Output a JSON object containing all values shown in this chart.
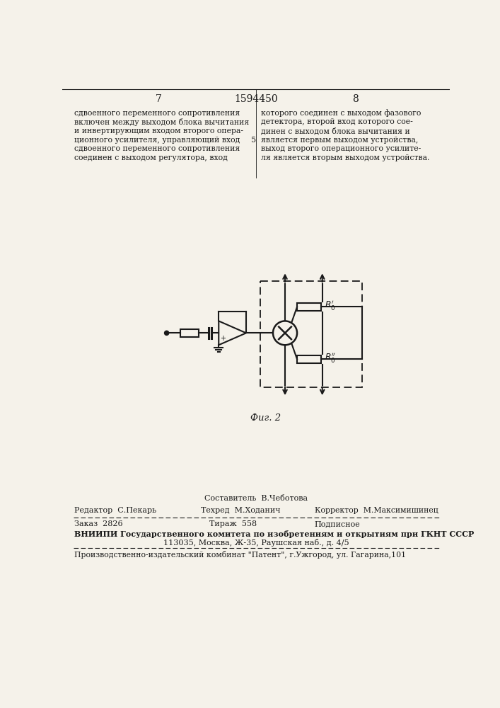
{
  "page_num_left": "7",
  "page_num_center": "1594450",
  "page_num_right": "8",
  "col_line_num": "5",
  "left_text": [
    "сдвоенного переменного сопротивления",
    "включен между выходом блока вычитания",
    "и инвертирующим входом второго опера-",
    "ционного усилителя, управляющий вход",
    "сдвоенного переменного сопротивления",
    "соединен с выходом регулятора, вход"
  ],
  "right_text": [
    "которого соединен с выходом фазового",
    "детектора, второй вход которого сое-",
    "динен с выходом блока вычитания и",
    "является первым выходом устройства,",
    "выход второго операционного усилите-",
    "ля является вторым выходом устройства."
  ],
  "fig_caption": "Фиг. 2",
  "footer_editor": "Редактор  С.Пекарь",
  "footer_composer": "Составитель  В.Чеботова",
  "footer_techred": "Техред  М.Ходанич",
  "footer_corrector": "Корректор  М.Максимишинец",
  "footer_order": "Заказ  2826",
  "footer_circulation": "Тираж  558",
  "footer_signed": "Подписное",
  "footer_vnipi": "ВНИИПИ Государственного комитета по изобретениям и открытиям при ГКНТ СССР",
  "footer_address": "113035, Москва, Ж-35, Раушская наб., д. 4/5",
  "footer_production": "Производственно-издательский комбинат \"Патент\", г.Ужгород, ул. Гагарина,101",
  "bg_color": "#f5f2ea",
  "text_color": "#1a1a1a",
  "line_color": "#1a1a1a"
}
